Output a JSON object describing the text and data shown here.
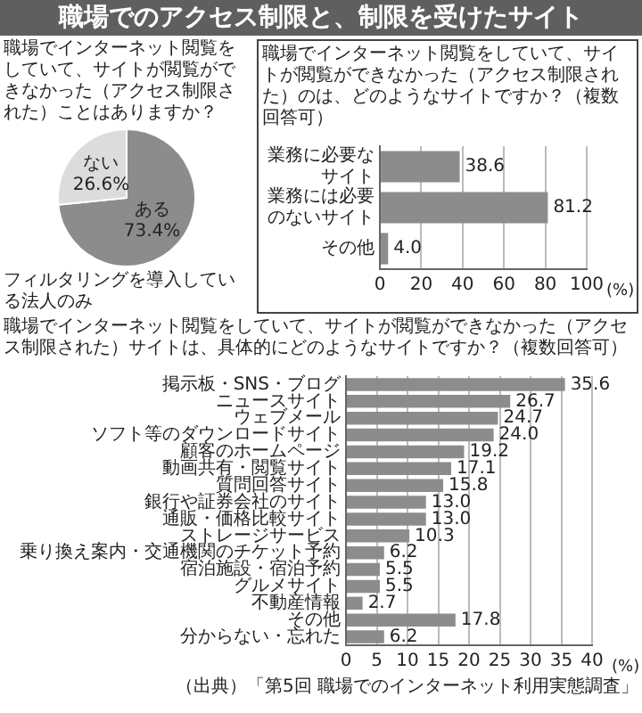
{
  "chart_data": [
    {
      "type": "other",
      "title": "職場でのアクセス制限と、制限を受けたサイト"
    },
    {
      "type": "pie",
      "title": "職場でインターネット閲覧をしていて、サイトが閲覧ができなかった（アクセス制限された）ことはありますか？",
      "categories": [
        "ある",
        "ない"
      ],
      "values": [
        73.4,
        26.6
      ],
      "colors": [
        "#8c8c8c",
        "#dcdcdc"
      ],
      "value_labels": [
        "73.4%",
        "26.6%"
      ],
      "annotations": [
        "フィルタリングを導入している法人のみ"
      ]
    },
    {
      "type": "bar",
      "orientation": "horizontal",
      "title": "職場でインターネット閲覧をしていて、サイトが閲覧ができなかった（アクセス制限された）のは、どのようなサイトですか？（複数回答可）",
      "categories": [
        "業務に必要なサイト",
        "業務には必要のないサイト",
        "その他"
      ],
      "values": [
        38.6,
        81.2,
        4.0
      ],
      "value_labels": [
        "38.6",
        "81.2",
        "4.0"
      ],
      "color": "#8c8c8c",
      "xlim": [
        0,
        100
      ],
      "xticks": [
        0,
        20,
        40,
        60,
        80,
        100
      ],
      "xlabel": "(%)",
      "grid": "x"
    },
    {
      "type": "bar",
      "orientation": "horizontal",
      "title": "職場でインターネット閲覧をしていて、サイトが閲覧ができなかった（アクセス制限された）サイトは、具体的にどのようなサイトですか？（複数回答可）",
      "categories": [
        "掲示板・SNS・ブログ",
        "ニュースサイト",
        "ウェブメール",
        "ソフト等のダウンロードサイト",
        "顧客のホームページ",
        "動画共有・閲覧サイト",
        "質問回答サイト",
        "銀行や証券会社のサイト",
        "通販・価格比較サイト",
        "ストレージサービス",
        "乗り換え案内・交通機関のチケット予約",
        "宿泊施設・宿泊予約",
        "グルメサイト",
        "不動産情報",
        "その他",
        "分からない・忘れた"
      ],
      "values": [
        35.6,
        26.7,
        24.7,
        24.0,
        19.2,
        17.1,
        15.8,
        13.0,
        13.0,
        10.3,
        6.2,
        5.5,
        5.5,
        2.7,
        17.8,
        6.2
      ],
      "value_labels": [
        "35.6",
        "26.7",
        "24.7",
        "24.0",
        "19.2",
        "17.1",
        "15.8",
        "13.0",
        "13.0",
        "10.3",
        "6.2",
        "5.5",
        "5.5",
        "2.7",
        "17.8",
        "6.2"
      ],
      "color": "#8c8c8c",
      "xlim": [
        0,
        40
      ],
      "xticks": [
        0,
        5,
        10,
        15,
        20,
        25,
        30,
        35,
        40
      ],
      "xlabel": "(%)",
      "grid": "x",
      "annotations": [
        "（出典）「第5回 職場でのインターネット利用実態調査」"
      ]
    }
  ]
}
